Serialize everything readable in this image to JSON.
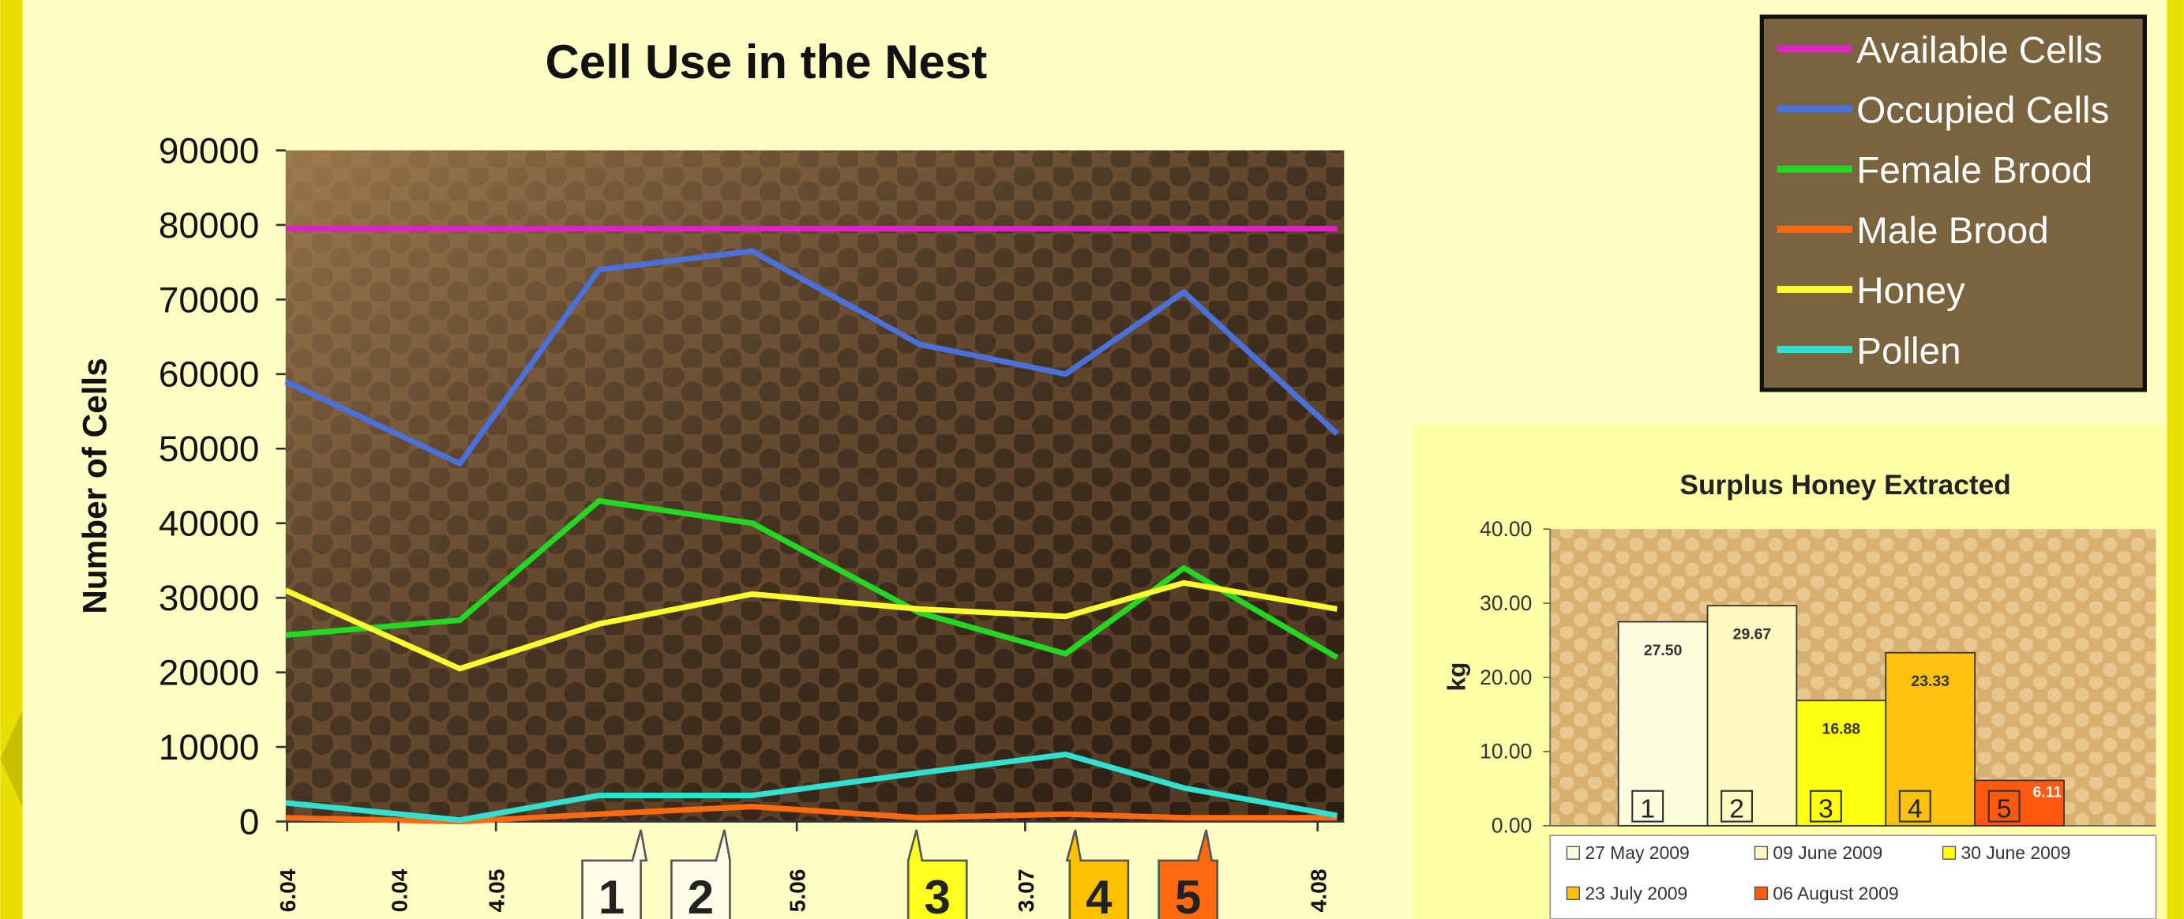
{
  "chart_data": [
    {
      "type": "line",
      "title": "Cell Use in the Nest",
      "y_label": "Number of Cells",
      "ylim": [
        0,
        90000
      ],
      "yticks": [
        0,
        10000,
        20000,
        30000,
        40000,
        50000,
        60000,
        70000,
        80000,
        90000
      ],
      "x_tick_labels": [
        "6.04",
        "0.04",
        "4.05",
        "5.06",
        "3.07",
        "4.08"
      ],
      "series": [
        {
          "name": "Available Cells",
          "color": "#e020c8",
          "values": [
            79500,
            79500,
            79500,
            79500,
            79500,
            79500,
            79500,
            79500
          ]
        },
        {
          "name": "Occupied Cells",
          "color": "#4a70dc",
          "values": [
            59000,
            48000,
            74000,
            76500,
            64000,
            60000,
            71000,
            52000
          ]
        },
        {
          "name": "Female Brood",
          "color": "#22d822",
          "values": [
            25000,
            27000,
            43000,
            40000,
            28000,
            22500,
            34000,
            22000
          ]
        },
        {
          "name": "Male Brood",
          "color": "#ff6a10",
          "values": [
            500,
            0,
            1000,
            2000,
            500,
            1000,
            500,
            500
          ]
        },
        {
          "name": "Honey",
          "color": "#ffff30",
          "values": [
            31000,
            20500,
            26500,
            30500,
            28500,
            27500,
            32000,
            28500
          ]
        },
        {
          "name": "Pollen",
          "color": "#30e0d0",
          "values": [
            2500,
            200,
            3500,
            3500,
            6500,
            9000,
            4500,
            800
          ]
        }
      ],
      "annotations": [
        {
          "label": "1",
          "color": "#fffde8"
        },
        {
          "label": "2",
          "color": "#fffde8"
        },
        {
          "label": "3",
          "color": "#ffff20"
        },
        {
          "label": "4",
          "color": "#ffc000"
        },
        {
          "label": "5",
          "color": "#ff6a10"
        }
      ]
    },
    {
      "type": "bar",
      "title": "Surplus Honey Extracted",
      "y_label": "kg",
      "ylim": [
        0,
        40
      ],
      "yticks": [
        {
          "value": 0,
          "label": "0.00"
        },
        {
          "value": 10,
          "label": "10.00"
        },
        {
          "value": 20,
          "label": "20.00"
        },
        {
          "value": 30,
          "label": "30.00"
        },
        {
          "value": 40,
          "label": "40.00"
        }
      ],
      "series": [
        {
          "name": "27 May 2009",
          "color": "#fffde0",
          "values": [
            27.5
          ],
          "value_labels": [
            "27.50"
          ],
          "badge": "1"
        },
        {
          "name": "09 June 2009",
          "color": "#fff8c0",
          "values": [
            29.67
          ],
          "value_labels": [
            "29.67"
          ],
          "badge": "2"
        },
        {
          "name": "30 June 2009",
          "color": "#ffff10",
          "values": [
            16.88
          ],
          "value_labels": [
            "16.88"
          ],
          "badge": "3"
        },
        {
          "name": "23 July 2009",
          "color": "#ffc010",
          "values": [
            23.33
          ],
          "value_labels": [
            "23.33"
          ],
          "badge": "4"
        },
        {
          "name": "06 August 2009",
          "color": "#ff5a10",
          "values": [
            6.11
          ],
          "value_labels": [
            "6.11"
          ],
          "badge": "5"
        }
      ]
    }
  ]
}
